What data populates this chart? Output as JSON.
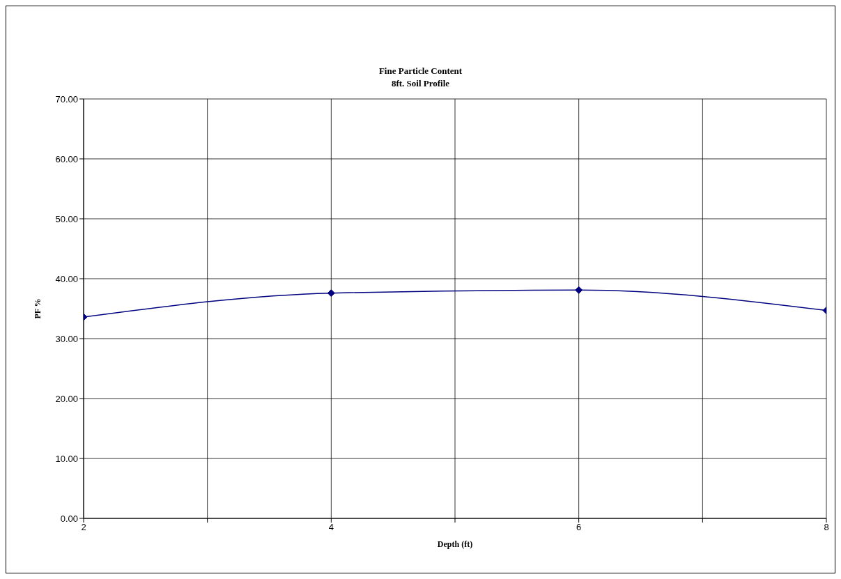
{
  "chart_data": {
    "type": "line",
    "title": "Fine Particle Content",
    "subtitle": "8ft. Soil Profile",
    "xlabel": "Depth (ft)",
    "ylabel": "PF %",
    "x": [
      2,
      4,
      6,
      8
    ],
    "series": [
      {
        "color": "#000080",
        "values": [
          33.6,
          37.6,
          38.1,
          34.7
        ]
      }
    ],
    "xlim": [
      2,
      8
    ],
    "xticks": [
      2,
      {
        "value": 3,
        "label": null
      },
      4,
      {
        "value": 5,
        "label": null
      },
      6,
      {
        "value": 7,
        "label": null
      },
      8
    ],
    "ylim": [
      0,
      70
    ],
    "yticks": [
      {
        "value": 0,
        "label": "0.00"
      },
      {
        "value": 10,
        "label": "10.00"
      },
      {
        "value": 20,
        "label": "20.00"
      },
      {
        "value": 30,
        "label": "30.00"
      },
      {
        "value": 40,
        "label": "40.00"
      },
      {
        "value": 50,
        "label": "50.00"
      },
      {
        "value": 60,
        "label": "60.00"
      },
      {
        "value": 70,
        "label": "70.00"
      }
    ],
    "grid": true,
    "legend": false,
    "marker": "diamond",
    "line_style": "solid"
  }
}
